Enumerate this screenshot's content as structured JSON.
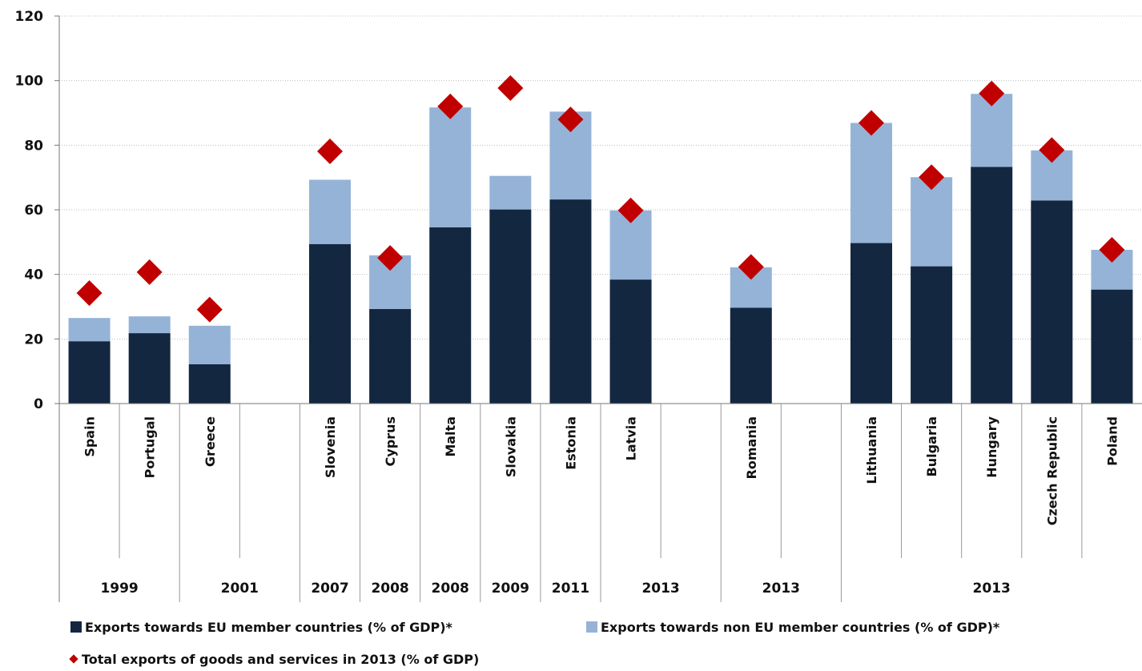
{
  "chart_data": {
    "type": "bar",
    "stacked": true,
    "ylim": [
      0,
      120
    ],
    "yticks": [
      0,
      20,
      40,
      60,
      80,
      100,
      120
    ],
    "grid": true,
    "legend_position": "bottom",
    "categories": [
      "Spain",
      "Portugal",
      "Greece",
      "",
      "Slovenia",
      "Cyprus",
      "Malta",
      "Slovakia",
      "Estonia",
      "Latvia",
      "",
      "Romania",
      "",
      "Lithuania",
      "Bulgaria",
      "Hungary",
      "Czech Republic",
      "Poland"
    ],
    "year_groups": [
      {
        "label": "1999",
        "span": 2
      },
      {
        "label": "2001",
        "span": 2
      },
      {
        "label": "2007",
        "span": 1
      },
      {
        "label": "2008",
        "span": 1
      },
      {
        "label": "2008",
        "span": 1
      },
      {
        "label": "2009",
        "span": 1
      },
      {
        "label": "2011",
        "span": 1
      },
      {
        "label": "2013",
        "span": 2
      },
      {
        "label": "2013",
        "span": 2
      },
      {
        "label": "2013",
        "span": 5
      }
    ],
    "series": [
      {
        "name": "Exports towards EU member countries (% of GDP)*",
        "kind": "bar",
        "color": "#132740",
        "values": [
          19.3,
          21.8,
          12.2,
          null,
          49.4,
          29.3,
          54.6,
          60.1,
          63.2,
          38.4,
          null,
          29.7,
          null,
          49.7,
          42.5,
          73.3,
          62.9,
          35.3
        ]
      },
      {
        "name": "Exports towards non EU member countries (% of GDP)*",
        "kind": "bar",
        "color": "#95b3d7",
        "values": [
          7.2,
          5.2,
          11.9,
          null,
          19.9,
          16.6,
          37.1,
          10.4,
          27.2,
          21.4,
          null,
          12.5,
          null,
          37.2,
          27.6,
          22.6,
          15.5,
          12.3
        ]
      },
      {
        "name": "Total exports of goods and services in 2013 (% of GDP)",
        "kind": "marker",
        "color": "#c00000",
        "values": [
          34.2,
          40.7,
          29.1,
          null,
          78.1,
          45.1,
          92.0,
          97.7,
          88.0,
          59.8,
          null,
          42.3,
          null,
          86.9,
          70.1,
          96.0,
          78.5,
          47.6
        ]
      }
    ]
  }
}
